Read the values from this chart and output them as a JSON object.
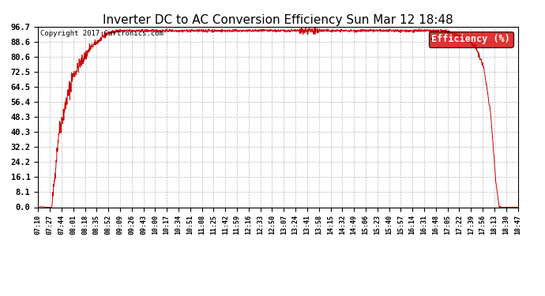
{
  "title": "Inverter DC to AC Conversion Efficiency Sun Mar 12 18:48",
  "copyright_text": "Copyright 2017 Cartronics.com",
  "legend_label": "Efficiency (%)",
  "legend_bg": "#dd0000",
  "legend_text_color": "#ffffff",
  "line_color": "#cc0000",
  "bg_color": "#ffffff",
  "grid_color": "#aaaaaa",
  "title_fontsize": 11,
  "y_ticks": [
    0.0,
    8.1,
    16.1,
    24.2,
    32.2,
    40.3,
    48.3,
    56.4,
    64.5,
    72.5,
    80.6,
    88.6,
    96.7
  ],
  "ylim": [
    0.0,
    96.7
  ],
  "x_tick_labels": [
    "07:10",
    "07:27",
    "07:44",
    "08:01",
    "08:18",
    "08:35",
    "08:52",
    "09:09",
    "09:26",
    "09:43",
    "10:00",
    "10:17",
    "10:34",
    "10:51",
    "11:08",
    "11:25",
    "11:42",
    "11:59",
    "12:16",
    "12:33",
    "12:50",
    "13:07",
    "13:24",
    "13:41",
    "13:58",
    "14:15",
    "14:32",
    "14:49",
    "15:06",
    "15:23",
    "15:40",
    "15:57",
    "16:14",
    "16:31",
    "16:48",
    "17:05",
    "17:22",
    "17:39",
    "17:56",
    "18:13",
    "18:30",
    "18:47"
  ],
  "figsize": [
    6.9,
    3.75
  ],
  "dpi": 100
}
